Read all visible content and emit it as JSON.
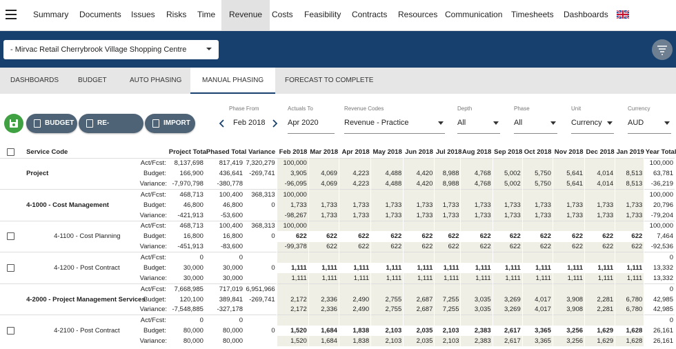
{
  "nav": {
    "items": [
      "Summary",
      "Documents",
      "Issues",
      "Risks",
      "Time",
      "Revenue",
      "Costs",
      "Feasibility",
      "Contracts",
      "Resources",
      "Communication",
      "Timesheets",
      "Dashboards"
    ],
    "active": 5
  },
  "project": "- Mirvac Retail Cherrybrook Village Shopping Centre",
  "tabs": {
    "items": [
      "DASHBOARDS",
      "BUDGET",
      "AUTO PHASING",
      "MANUAL PHASING",
      "FORECAST TO COMPLETE"
    ],
    "active": 3
  },
  "buttons": [
    "BUDGET",
    "RE-BASELINE",
    "IMPORT"
  ],
  "filters": [
    {
      "label": "Phase From",
      "value": "Feb 2018"
    },
    {
      "label": "Actuals To",
      "value": "Apr 2020"
    },
    {
      "label": "Revenue Codes",
      "value": "Revenue - Practice"
    },
    {
      "label": "Depth",
      "value": "All"
    },
    {
      "label": "Phase",
      "value": "All"
    },
    {
      "label": "Unit",
      "value": "Currency"
    },
    {
      "label": "Currency",
      "value": "AUD"
    }
  ],
  "table": {
    "headers": [
      "Service Code",
      "Project Total",
      "Phased Total",
      "Variance",
      "Feb 2018",
      "Mar 2018",
      "Apr 2018",
      "May 2018",
      "Jun 2018",
      "Jul 2018",
      "Aug 2018",
      "Sep 2018",
      "Oct 2018",
      "Nov 2018",
      "Dec 2018",
      "Jan 2019",
      "Year Total"
    ],
    "groups": [
      {
        "name": "Project",
        "checkbox": false,
        "indent": false,
        "rows": [
          {
            "label": "Act/Fcst:",
            "cells": [
              "8,137,698",
              "817,419",
              "7,320,279",
              "100,000",
              null,
              null,
              null,
              null,
              null,
              null,
              null,
              null,
              null,
              null,
              null,
              "100,000"
            ]
          },
          {
            "label": "Budget:",
            "cells": [
              "166,900",
              "436,641",
              "-269,741",
              "3,905",
              "4,069",
              "4,223",
              "4,488",
              "4,420",
              "8,988",
              "4,768",
              "5,002",
              "5,750",
              "5,641",
              "4,014",
              "8,513",
              "63,781"
            ]
          },
          {
            "label": "Variance:",
            "cells": [
              "-7,970,798",
              "-380,778",
              null,
              "-96,095",
              "4,069",
              "4,223",
              "4,488",
              "4,420",
              "8,988",
              "4,768",
              "5,002",
              "5,750",
              "5,641",
              "4,014",
              "8,513",
              "-36,219"
            ]
          }
        ]
      },
      {
        "name": "4-1000 - Cost Management",
        "checkbox": false,
        "indent": false,
        "rows": [
          {
            "label": "Act/Fcst:",
            "cells": [
              "468,713",
              "100,400",
              "368,313",
              "100,000",
              null,
              null,
              null,
              null,
              null,
              null,
              null,
              null,
              null,
              null,
              null,
              "100,000"
            ]
          },
          {
            "label": "Budget:",
            "cells": [
              "46,800",
              "46,800",
              "0",
              "1,733",
              "1,733",
              "1,733",
              "1,733",
              "1,733",
              "1,733",
              "1,733",
              "1,733",
              "1,733",
              "1,733",
              "1,733",
              "1,733",
              "20,796"
            ]
          },
          {
            "label": "Variance:",
            "cells": [
              "-421,913",
              "-53,600",
              null,
              "-98,267",
              "1,733",
              "1,733",
              "1,733",
              "1,733",
              "1,733",
              "1,733",
              "1,733",
              "1,733",
              "1,733",
              "1,733",
              "1,733",
              "-79,204"
            ]
          }
        ]
      },
      {
        "name": "4-1100 - Cost Planning",
        "checkbox": true,
        "indent": true,
        "rows": [
          {
            "label": "Act/Fcst:",
            "cells": [
              "468,713",
              "100,400",
              "368,313",
              "100,000",
              null,
              null,
              null,
              null,
              null,
              null,
              null,
              null,
              null,
              null,
              null,
              "100,000"
            ]
          },
          {
            "label": "Budget:",
            "cells": [
              "16,800",
              "16,800",
              "0",
              "622",
              "622",
              "622",
              "622",
              "622",
              "622",
              "622",
              "622",
              "622",
              "622",
              "622",
              "622",
              "7,464"
            ]
          },
          {
            "label": "Variance:",
            "cells": [
              "-451,913",
              "-83,600",
              null,
              "-99,378",
              "622",
              "622",
              "622",
              "622",
              "622",
              "622",
              "622",
              "622",
              "622",
              "622",
              "622",
              "-92,536"
            ]
          }
        ]
      },
      {
        "name": "4-1200 - Post Contract",
        "checkbox": true,
        "indent": true,
        "rows": [
          {
            "label": "Act/Fcst:",
            "cells": [
              "0",
              "0",
              null,
              null,
              null,
              null,
              null,
              null,
              null,
              null,
              null,
              null,
              null,
              null,
              null,
              "0"
            ]
          },
          {
            "label": "Budget:",
            "cells": [
              "30,000",
              "30,000",
              "0",
              "1,111",
              "1,111",
              "1,111",
              "1,111",
              "1,111",
              "1,111",
              "1,111",
              "1,111",
              "1,111",
              "1,111",
              "1,111",
              "1,111",
              "13,332"
            ]
          },
          {
            "label": "Variance:",
            "cells": [
              "30,000",
              "30,000",
              null,
              "1,111",
              "1,111",
              "1,111",
              "1,111",
              "1,111",
              "1,111",
              "1,111",
              "1,111",
              "1,111",
              "1,111",
              "1,111",
              "1,111",
              "13,332"
            ]
          }
        ]
      },
      {
        "name": "4-2000 - Project Management Services",
        "checkbox": false,
        "indent": false,
        "rows": [
          {
            "label": "Act/Fcst:",
            "cells": [
              "7,668,985",
              "717,019",
              "6,951,966",
              null,
              null,
              null,
              null,
              null,
              null,
              null,
              null,
              null,
              null,
              null,
              null,
              "0"
            ]
          },
          {
            "label": "Budget:",
            "cells": [
              "120,100",
              "389,841",
              "-269,741",
              "2,172",
              "2,336",
              "2,490",
              "2,755",
              "2,687",
              "7,255",
              "3,035",
              "3,269",
              "4,017",
              "3,908",
              "2,281",
              "6,780",
              "42,985"
            ]
          },
          {
            "label": "Variance:",
            "cells": [
              "-7,548,885",
              "-327,178",
              null,
              "2,172",
              "2,336",
              "2,490",
              "2,755",
              "2,687",
              "7,255",
              "3,035",
              "3,269",
              "4,017",
              "3,908",
              "2,281",
              "6,780",
              "42,985"
            ]
          }
        ]
      },
      {
        "name": "4-2100 - Post Contract",
        "checkbox": true,
        "indent": true,
        "rows": [
          {
            "label": "Act/Fcst:",
            "cells": [
              "0",
              "0",
              null,
              null,
              null,
              null,
              null,
              null,
              null,
              null,
              null,
              null,
              null,
              null,
              null,
              "0"
            ]
          },
          {
            "label": "Budget:",
            "cells": [
              "80,000",
              "80,000",
              "0",
              "1,520",
              "1,684",
              "1,838",
              "2,103",
              "2,035",
              "2,103",
              "2,383",
              "2,617",
              "3,365",
              "3,256",
              "1,629",
              "1,628",
              "26,161"
            ]
          },
          {
            "label": "Variance:",
            "cells": [
              "80,000",
              "80,000",
              null,
              "1,520",
              "1,684",
              "1,838",
              "2,103",
              "2,035",
              "2,103",
              "2,383",
              "2,617",
              "3,365",
              "3,256",
              "1,629",
              "1,628",
              "26,161"
            ]
          }
        ]
      }
    ]
  }
}
